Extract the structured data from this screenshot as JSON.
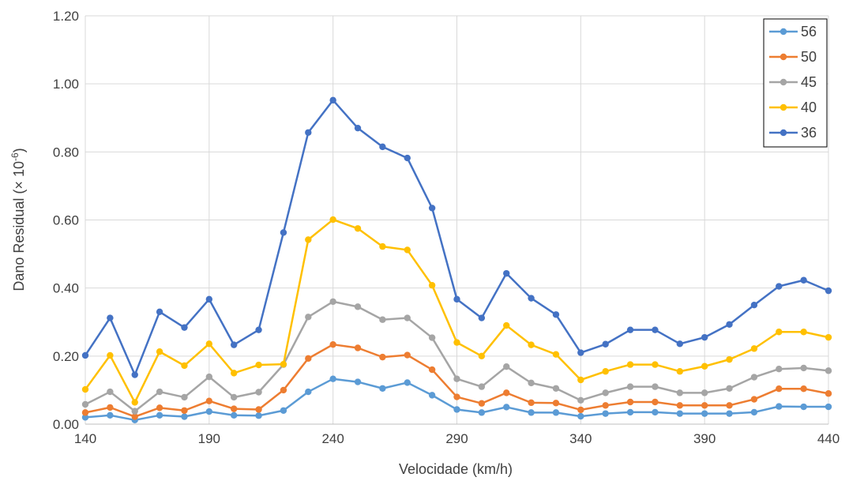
{
  "chart_data": {
    "type": "line",
    "title": "",
    "xlabel": "Velocidade (km/h)",
    "ylabel_main": "Dano Residual (× 10",
    "ylabel_sup": "-6",
    "ylabel_end": ")",
    "xlim": [
      140,
      440
    ],
    "ylim": [
      0,
      1.2
    ],
    "x_ticks": [
      "140",
      "190",
      "240",
      "290",
      "340",
      "390",
      "440"
    ],
    "y_ticks": [
      "0.00",
      "0.20",
      "0.40",
      "0.60",
      "0.80",
      "1.00",
      "1.20"
    ],
    "grid": true,
    "legend_position": "top-right",
    "x": [
      140,
      150,
      160,
      170,
      180,
      190,
      200,
      210,
      220,
      230,
      240,
      250,
      260,
      270,
      280,
      290,
      300,
      310,
      320,
      330,
      340,
      350,
      360,
      370,
      380,
      390,
      400,
      410,
      420,
      430,
      440
    ],
    "series": [
      {
        "name": "56",
        "color": "#5b9bd5",
        "values": [
          0.02,
          0.026,
          0.012,
          0.026,
          0.022,
          0.037,
          0.026,
          0.025,
          0.04,
          0.095,
          0.133,
          0.124,
          0.105,
          0.122,
          0.085,
          0.043,
          0.034,
          0.05,
          0.034,
          0.034,
          0.023,
          0.031,
          0.035,
          0.035,
          0.031,
          0.031,
          0.031,
          0.035,
          0.052,
          0.051,
          0.051
        ]
      },
      {
        "name": "50",
        "color": "#ed7d31",
        "values": [
          0.034,
          0.049,
          0.022,
          0.048,
          0.04,
          0.068,
          0.045,
          0.043,
          0.1,
          0.193,
          0.234,
          0.224,
          0.197,
          0.203,
          0.16,
          0.08,
          0.061,
          0.092,
          0.063,
          0.062,
          0.042,
          0.055,
          0.065,
          0.065,
          0.055,
          0.055,
          0.055,
          0.073,
          0.104,
          0.104,
          0.09
        ]
      },
      {
        "name": "45",
        "color": "#a5a5a5",
        "values": [
          0.058,
          0.095,
          0.038,
          0.095,
          0.079,
          0.139,
          0.079,
          0.094,
          0.175,
          0.315,
          0.36,
          0.345,
          0.307,
          0.312,
          0.254,
          0.133,
          0.11,
          0.169,
          0.121,
          0.105,
          0.07,
          0.092,
          0.11,
          0.11,
          0.092,
          0.092,
          0.105,
          0.138,
          0.162,
          0.165,
          0.157
        ]
      },
      {
        "name": "40",
        "color": "#ffc000",
        "values": [
          0.102,
          0.202,
          0.064,
          0.213,
          0.172,
          0.236,
          0.15,
          0.174,
          0.176,
          0.542,
          0.601,
          0.575,
          0.522,
          0.512,
          0.408,
          0.24,
          0.2,
          0.29,
          0.233,
          0.205,
          0.13,
          0.155,
          0.175,
          0.175,
          0.155,
          0.17,
          0.19,
          0.222,
          0.271,
          0.271,
          0.255
        ]
      },
      {
        "name": "36",
        "color": "#4472c4",
        "values": [
          0.202,
          0.312,
          0.145,
          0.33,
          0.284,
          0.367,
          0.233,
          0.277,
          0.563,
          0.857,
          0.952,
          0.87,
          0.815,
          0.782,
          0.635,
          0.367,
          0.312,
          0.443,
          0.37,
          0.322,
          0.21,
          0.235,
          0.277,
          0.277,
          0.236,
          0.255,
          0.293,
          0.35,
          0.405,
          0.423,
          0.392
        ]
      }
    ]
  }
}
